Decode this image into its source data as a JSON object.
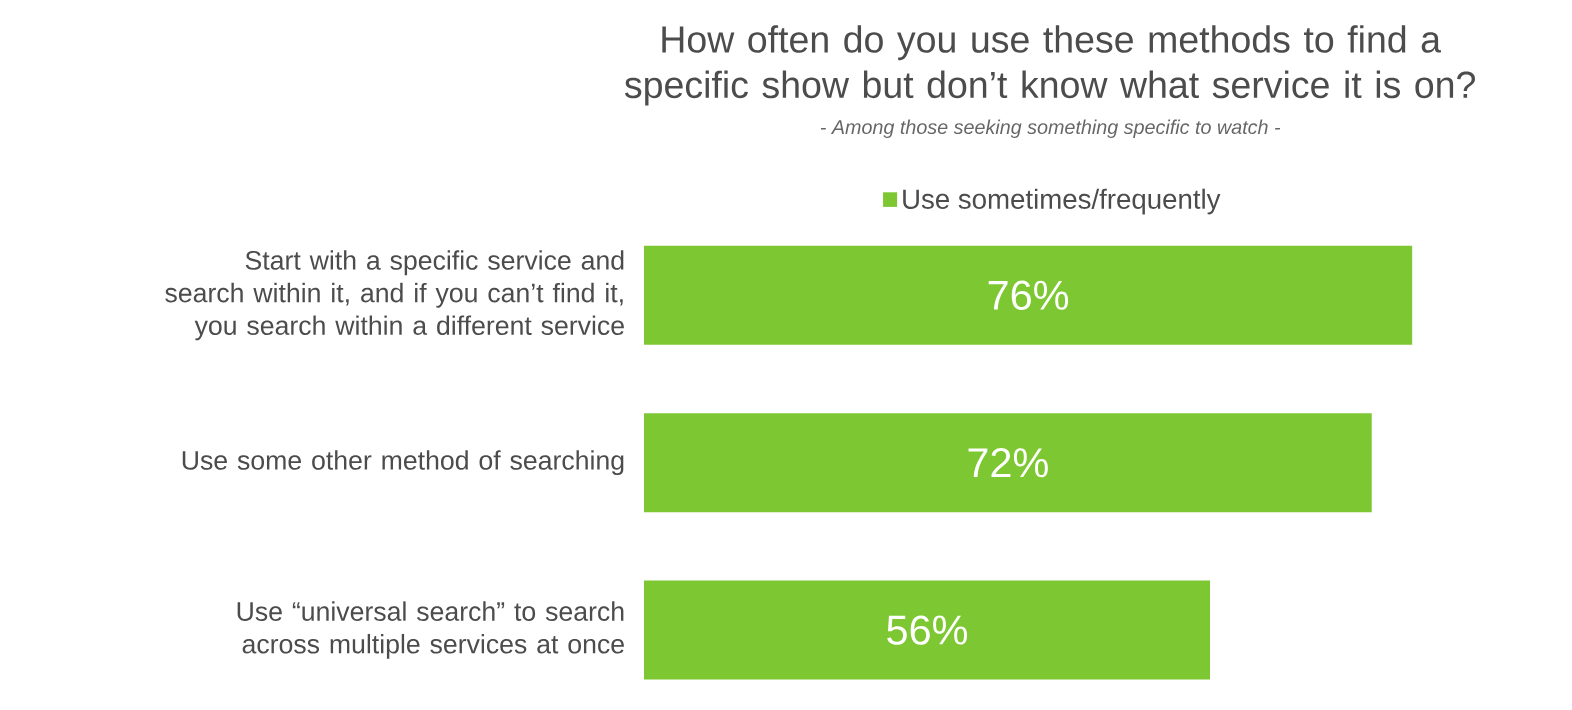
{
  "chart_data": {
    "type": "bar",
    "orientation": "horizontal",
    "title": "How often do you use these methods to find a specific show but don’t know what service it is on?",
    "subtitle": "- Among those seeking something specific to watch -",
    "categories": [
      "Start with a specific service and search within it, and if you can’t find it, you search within a different service",
      "Use some other method of searching",
      "Use “universal search” to search across multiple services at once"
    ],
    "series": [
      {
        "name": "Use sometimes/frequently",
        "color": "#7dc832",
        "values": [
          76,
          72,
          56
        ],
        "value_labels": [
          "76%",
          "72%",
          "56%"
        ]
      }
    ],
    "legend": "top",
    "tick_labels": "y"
  }
}
